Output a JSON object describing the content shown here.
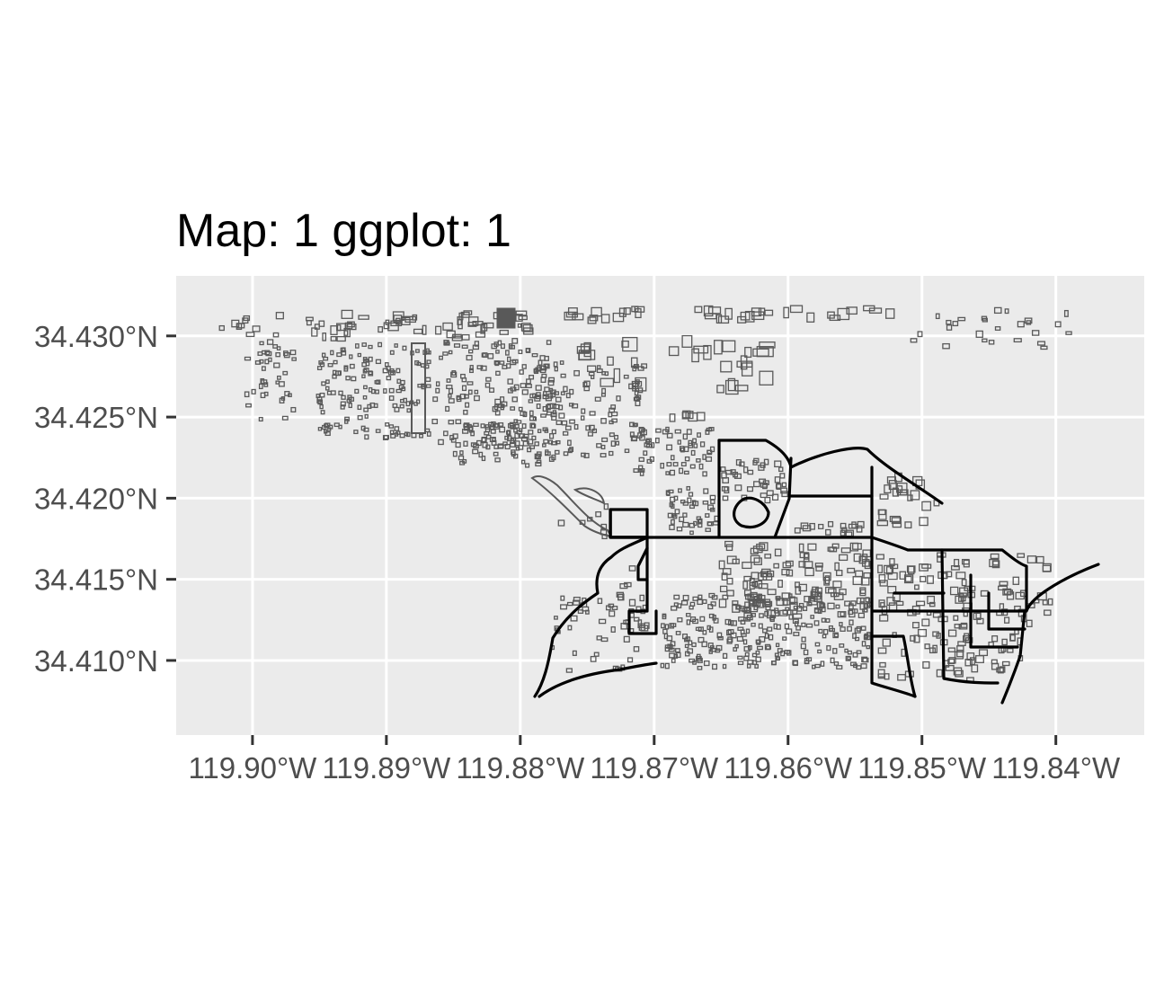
{
  "title": "Map: 1  ggplot: 1",
  "chart_data": {
    "type": "map",
    "title": "Map: 1  ggplot: 1",
    "x_axis": {
      "label": "",
      "ticks": [
        -119.9,
        -119.89,
        -119.88,
        -119.87,
        -119.86,
        -119.85,
        -119.84
      ],
      "tick_labels": [
        "119.90°W",
        "119.89°W",
        "119.88°W",
        "119.87°W",
        "119.86°W",
        "119.85°W",
        "119.84°W"
      ],
      "range": [
        -119.9057,
        -119.8334
      ]
    },
    "y_axis": {
      "label": "",
      "ticks": [
        34.41,
        34.415,
        34.42,
        34.425,
        34.43
      ],
      "tick_labels": [
        "34.410°N",
        "34.415°N",
        "34.420°N",
        "34.425°N",
        "34.430°N"
      ],
      "range": [
        34.4054,
        34.4337
      ]
    },
    "grid": true,
    "legend": "none",
    "layers": [
      {
        "name": "buildings",
        "geometry": "polygon",
        "fill": "none",
        "stroke": "#595959"
      },
      {
        "name": "roads",
        "geometry": "line",
        "stroke": "#000000"
      }
    ]
  },
  "colors": {
    "panel_background": "#ebebeb",
    "grid_major": "#ffffff",
    "axis_text": "#4d4d4d",
    "tick_mark": "#333333",
    "building_outline": "#595959",
    "road": "#000000"
  }
}
